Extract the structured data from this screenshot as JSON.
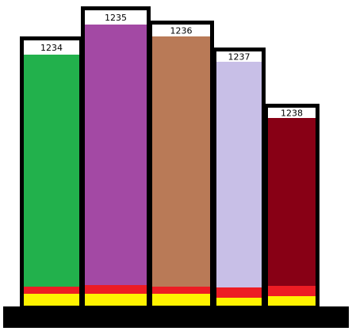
{
  "bars": [
    {
      "label": "1234"
    },
    {
      "label": "1235"
    },
    {
      "label": "1236"
    },
    {
      "label": "1237"
    },
    {
      "label": "1238"
    }
  ]
}
